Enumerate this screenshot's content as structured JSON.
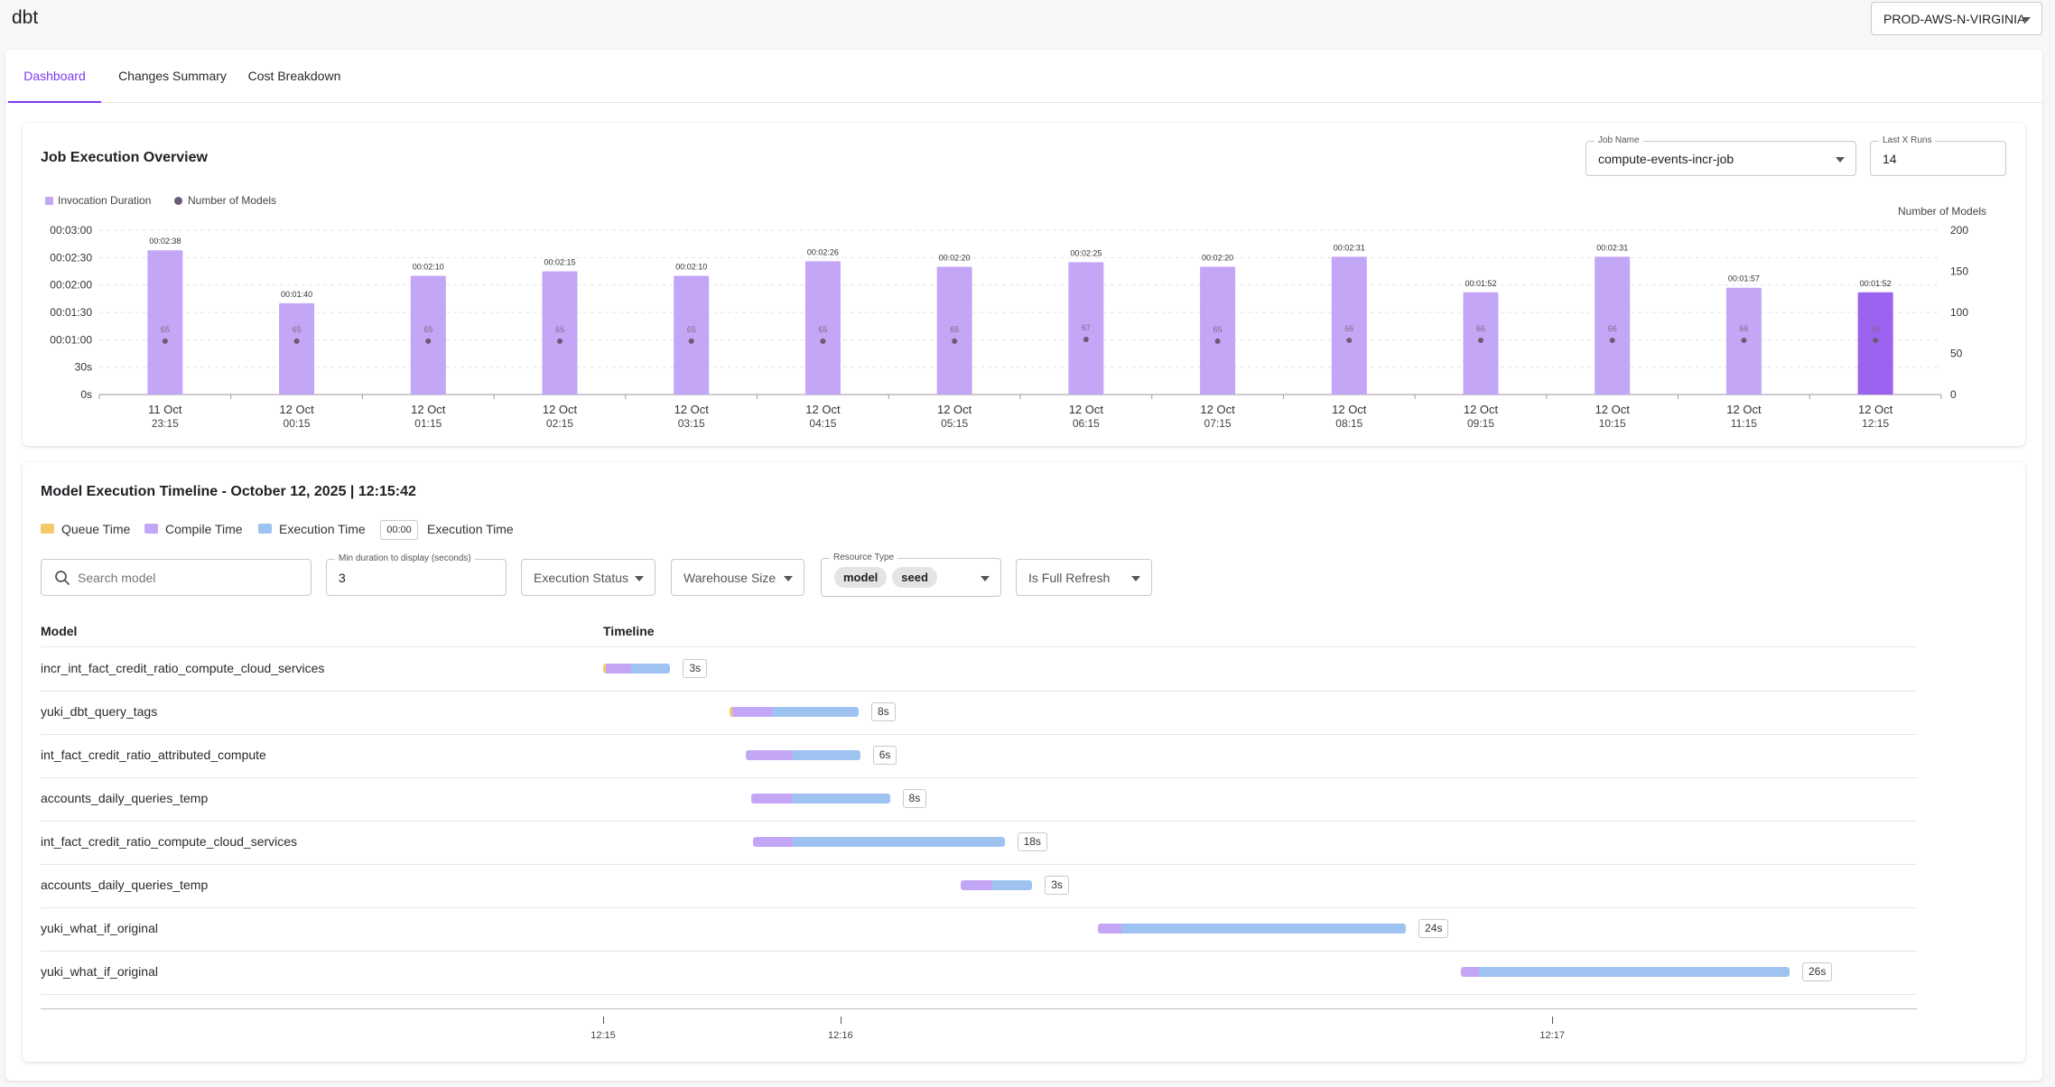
{
  "app": {
    "title": "dbt",
    "environment": "PROD-AWS-N-VIRGINIA"
  },
  "tabs": [
    {
      "label": "Dashboard",
      "active": true
    },
    {
      "label": "Changes Summary",
      "active": false
    },
    {
      "label": "Cost Breakdown",
      "active": false
    }
  ],
  "overview": {
    "title": "Job Execution Overview",
    "job_name_label": "Job Name",
    "job_name_value": "compute-events-incr-job",
    "last_runs_label": "Last X Runs",
    "last_runs_value": "14",
    "legend_duration": "Invocation Duration",
    "legend_models": "Number of Models",
    "right_axis_title": "Number of Models",
    "colors": {
      "bar": "#c4a6f7",
      "bar_selected": "#9b63f0",
      "dot": "#6b5b73"
    }
  },
  "chart_data": {
    "type": "bar",
    "y_ticks": [
      "0s",
      "30s",
      "00:01:00",
      "00:01:30",
      "00:02:00",
      "00:02:30",
      "00:03:00"
    ],
    "y_max_seconds": 180,
    "y2_ticks": [
      "0",
      "50",
      "100",
      "150",
      "200"
    ],
    "y2_max": 200,
    "categories": [
      [
        "11 Oct",
        "23:15"
      ],
      [
        "12 Oct",
        "00:15"
      ],
      [
        "12 Oct",
        "01:15"
      ],
      [
        "12 Oct",
        "02:15"
      ],
      [
        "12 Oct",
        "03:15"
      ],
      [
        "12 Oct",
        "04:15"
      ],
      [
        "12 Oct",
        "05:15"
      ],
      [
        "12 Oct",
        "06:15"
      ],
      [
        "12 Oct",
        "07:15"
      ],
      [
        "12 Oct",
        "08:15"
      ],
      [
        "12 Oct",
        "09:15"
      ],
      [
        "12 Oct",
        "10:15"
      ],
      [
        "12 Oct",
        "11:15"
      ],
      [
        "12 Oct",
        "12:15"
      ]
    ],
    "series": [
      {
        "name": "Invocation Duration",
        "values_seconds": [
          158,
          100,
          130,
          135,
          130,
          146,
          140,
          145,
          140,
          151,
          112,
          151,
          117,
          112
        ],
        "labels": [
          "00:02:38",
          "00:01:40",
          "00:02:10",
          "00:02:15",
          "00:02:10",
          "00:02:26",
          "00:02:20",
          "00:02:25",
          "00:02:20",
          "00:02:31",
          "00:01:52",
          "00:02:31",
          "00:01:57",
          "00:01:52"
        ]
      },
      {
        "name": "Number of Models",
        "values": [
          65,
          65,
          65,
          65,
          65,
          65,
          65,
          67,
          65,
          66,
          66,
          66,
          66,
          66
        ]
      }
    ],
    "selected_index": 13
  },
  "timeline": {
    "title": "Model Execution Timeline - October 12, 2025 | 12:15:42",
    "legend": {
      "queue": "Queue Time",
      "compile": "Compile Time",
      "execution": "Execution Time",
      "badge_sample": "00:00",
      "badge_label": "Execution Time"
    },
    "colors": {
      "queue": "#f5c96a",
      "compile": "#c4a6f7",
      "execution": "#9fc3f0"
    },
    "search_placeholder": "Search model",
    "min_duration_label": "Min duration to display (seconds)",
    "min_duration_value": "3",
    "execution_status_label": "Execution Status",
    "warehouse_size_label": "Warehouse Size",
    "resource_type_label": "Resource Type",
    "resource_types": [
      "model",
      "seed"
    ],
    "full_refresh_label": "Is Full Refresh",
    "col_model": "Model",
    "col_timeline": "Timeline",
    "axis_ticks": [
      {
        "label": "12:15",
        "t": 0
      },
      {
        "label": "12:16",
        "t": 60
      },
      {
        "label": "12:17",
        "t": 240
      }
    ],
    "axis_max": 300,
    "rows": [
      {
        "model": "incr_int_fact_credit_ratio_compute_cloud_services",
        "start": 0,
        "queue": 0.6,
        "compile": 6.4,
        "execution": 10,
        "duration": "3s"
      },
      {
        "model": "yuki_dbt_query_tags",
        "start": 32,
        "queue": 0.6,
        "compile": 10,
        "execution": 22,
        "duration": "8s"
      },
      {
        "model": "int_fact_credit_ratio_attributed_compute",
        "start": 36,
        "queue": 0,
        "compile": 12,
        "execution": 17,
        "duration": "6s"
      },
      {
        "model": "accounts_daily_queries_temp",
        "start": 37.5,
        "queue": 0,
        "compile": 10.5,
        "execution": 24.5,
        "duration": "8s"
      },
      {
        "model": "int_fact_credit_ratio_compute_cloud_services",
        "start": 37.8,
        "queue": 0,
        "compile": 10.2,
        "execution": 53.5,
        "duration": "18s"
      },
      {
        "model": "accounts_daily_queries_temp",
        "start": 90.5,
        "queue": 0,
        "compile": 8,
        "execution": 10,
        "duration": "3s"
      },
      {
        "model": "yuki_what_if_original",
        "start": 125,
        "queue": 0,
        "compile": 6,
        "execution": 72,
        "duration": "24s"
      },
      {
        "model": "yuki_what_if_original",
        "start": 217,
        "queue": 0,
        "compile": 4.5,
        "execution": 78.5,
        "duration": "26s"
      }
    ]
  }
}
